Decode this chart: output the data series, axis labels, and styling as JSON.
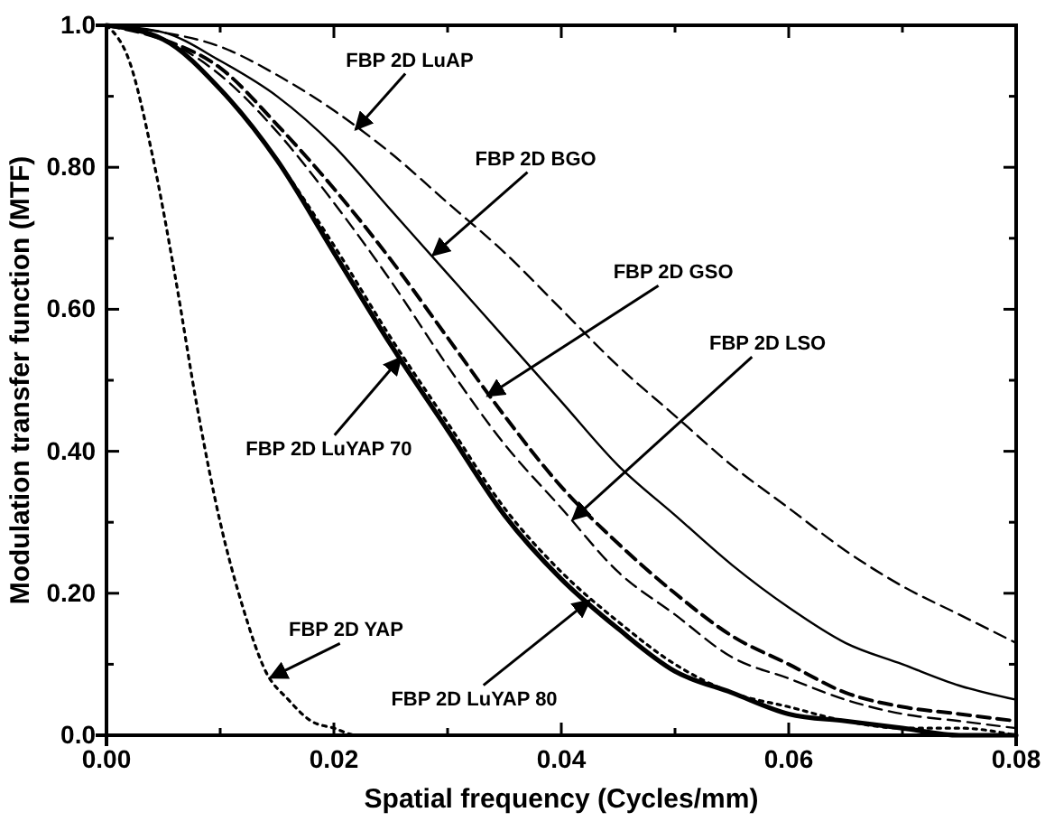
{
  "chart_data": {
    "type": "line",
    "xlabel": "Spatial frequency (Cycles/mm)",
    "ylabel": "Modulation transfer function (MTF)",
    "xlim": [
      0,
      0.08
    ],
    "ylim": [
      0,
      1
    ],
    "xticks": [
      {
        "value": 0,
        "label": "0.00"
      },
      {
        "value": 0.01,
        "label": null
      },
      {
        "value": 0.02,
        "label": "0.02"
      },
      {
        "value": 0.03,
        "label": null
      },
      {
        "value": 0.04,
        "label": "0.04"
      },
      {
        "value": 0.05,
        "label": null
      },
      {
        "value": 0.06,
        "label": "0.06"
      },
      {
        "value": 0.07,
        "label": null
      },
      {
        "value": 0.08,
        "label": "0.08"
      }
    ],
    "yticks": [
      {
        "value": 0,
        "label": "0.0"
      },
      {
        "value": 0.1,
        "label": null
      },
      {
        "value": 0.2,
        "label": "0.20"
      },
      {
        "value": 0.3,
        "label": null
      },
      {
        "value": 0.4,
        "label": "0.40"
      },
      {
        "value": 0.5,
        "label": null
      },
      {
        "value": 0.6,
        "label": "0.60"
      },
      {
        "value": 0.7,
        "label": null
      },
      {
        "value": 0.8,
        "label": "0.80"
      },
      {
        "value": 0.9,
        "label": null
      },
      {
        "value": 1,
        "label": "1.0"
      }
    ],
    "grid": false,
    "marker": "none",
    "x": [
      0,
      0.005,
      0.01,
      0.015,
      0.02,
      0.025,
      0.03,
      0.035,
      0.04,
      0.045,
      0.05,
      0.055,
      0.06,
      0.065,
      0.07,
      0.075,
      0.08
    ],
    "series": [
      {
        "color": "#000000",
        "line_style": "dashed",
        "values": [
          1,
          0.99,
          0.97,
          0.93,
          0.88,
          0.82,
          0.75,
          0.68,
          0.6,
          0.52,
          0.45,
          0.38,
          0.32,
          0.26,
          0.21,
          0.17,
          0.13
        ]
      },
      {
        "color": "#000000",
        "line_style": "solid",
        "values": [
          1,
          0.99,
          0.95,
          0.9,
          0.83,
          0.74,
          0.65,
          0.56,
          0.47,
          0.38,
          0.31,
          0.24,
          0.18,
          0.13,
          0.1,
          0.07,
          0.05
        ]
      },
      {
        "color": "#000000",
        "line_style": "dashed",
        "values": [
          1,
          0.98,
          0.94,
          0.86,
          0.77,
          0.67,
          0.56,
          0.45,
          0.35,
          0.27,
          0.2,
          0.14,
          0.1,
          0.06,
          0.04,
          0.03,
          0.02
        ]
      },
      {
        "color": "#000000",
        "line_style": "dashed",
        "values": [
          1,
          0.98,
          0.93,
          0.85,
          0.75,
          0.64,
          0.52,
          0.41,
          0.32,
          0.23,
          0.17,
          0.11,
          0.08,
          0.05,
          0.03,
          0.02,
          0.01
        ]
      },
      {
        "color": "#000000",
        "line_style": "solid",
        "values": [
          1,
          0.98,
          0.91,
          0.81,
          0.68,
          0.55,
          0.43,
          0.31,
          0.22,
          0.15,
          0.09,
          0.06,
          0.03,
          0.02,
          0.01,
          0,
          0
        ]
      },
      {
        "color": "#000000",
        "line_style": "dotted",
        "values": [
          1,
          0.98,
          0.91,
          0.81,
          0.69,
          0.56,
          0.44,
          0.32,
          0.23,
          0.16,
          0.1,
          0.06,
          0.04,
          0.02,
          0.01,
          0.01,
          0
        ]
      },
      {
        "color": "#000000",
        "line_style": "dotted",
        "x": [
          0,
          0.002,
          0.004,
          0.006,
          0.008,
          0.01,
          0.012,
          0.014,
          0.016,
          0.018,
          0.02,
          0.022,
          0.025,
          0.03
        ],
        "values": [
          1,
          0.95,
          0.82,
          0.65,
          0.46,
          0.3,
          0.18,
          0.09,
          0.05,
          0.02,
          0.01,
          0,
          0,
          0
        ]
      }
    ],
    "annotations": [
      {
        "text": "FBP 2D LuAP",
        "x": 0.0219,
        "y": 0.853
      },
      {
        "text": "FBP 2D BGO",
        "x": 0.0287,
        "y": 0.676
      },
      {
        "text": "FBP 2D GSO",
        "x": 0.0335,
        "y": 0.478
      },
      {
        "text": "FBP 2D LSO",
        "x": 0.041,
        "y": 0.304
      },
      {
        "text": "FBP 2D LuYAP 70",
        "x": 0.0259,
        "y": 0.532
      },
      {
        "text": "FBP 2D LuYAP 80",
        "x": 0.0425,
        "y": 0.19
      },
      {
        "text": "FBP 2D YAP",
        "x": 0.0144,
        "y": 0.081
      }
    ]
  }
}
